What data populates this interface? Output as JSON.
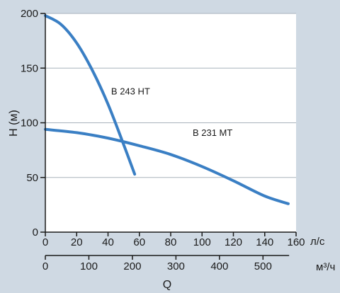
{
  "chart_data": {
    "type": "line",
    "title": "",
    "ylabel": "H (м)",
    "xlabel": "Q",
    "xlim": [
      0,
      160
    ],
    "ylim": [
      0,
      200
    ],
    "x_ticks": [
      0,
      20,
      40,
      60,
      80,
      100,
      120,
      140,
      160
    ],
    "y_ticks": [
      0,
      50,
      100,
      150,
      200
    ],
    "x_unit": "л/с",
    "secondary_x": {
      "unit": "м³/ч",
      "ticks": [
        0,
        100,
        200,
        300,
        400,
        500
      ]
    },
    "grid": "horizontal",
    "series": [
      {
        "name": "B 243 HT",
        "color": "#3a7fc4",
        "points": [
          [
            0,
            198
          ],
          [
            10,
            190
          ],
          [
            20,
            173
          ],
          [
            30,
            148
          ],
          [
            40,
            117
          ],
          [
            50,
            80
          ],
          [
            57,
            53
          ]
        ]
      },
      {
        "name": "B 231 MT",
        "color": "#3a7fc4",
        "points": [
          [
            0,
            94
          ],
          [
            20,
            91
          ],
          [
            40,
            86
          ],
          [
            60,
            79
          ],
          [
            80,
            71
          ],
          [
            100,
            60
          ],
          [
            120,
            47
          ],
          [
            140,
            33
          ],
          [
            155,
            26
          ]
        ]
      }
    ]
  }
}
